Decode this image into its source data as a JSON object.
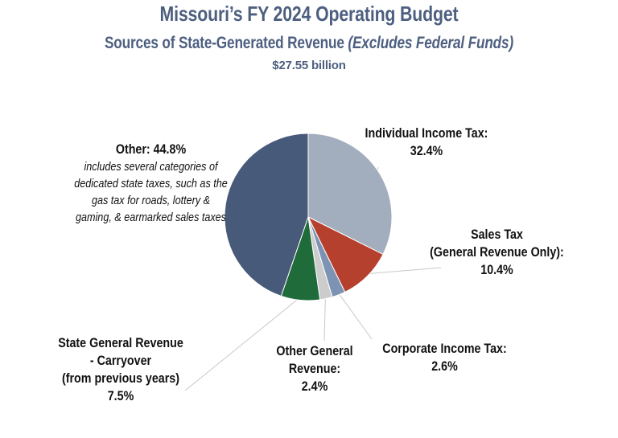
{
  "title": "Missouri’s FY 2024 Operating Budget",
  "subtitle_main": "Sources of State-Generated Revenue ",
  "subtitle_italic": "(Excludes Federal Funds)",
  "total": "$27.55 billion",
  "colors": {
    "title": "#4d5f80",
    "leader_line": "#c8c8c8"
  },
  "chart_data": {
    "type": "pie",
    "title": "Missouri’s FY 2024 Operating Budget",
    "subtitle": "Sources of State-Generated Revenue (Excludes Federal Funds)",
    "total": "$27.55 billion",
    "start_angle": "12 o'clock",
    "direction": "clockwise",
    "slices": [
      {
        "name": "Individual Income Tax",
        "value": 32.4,
        "label_lines": [
          "Individual Income Tax:",
          "32.4%"
        ],
        "color": "#a2adbe"
      },
      {
        "name": "Sales Tax (General Revenue Only)",
        "value": 10.4,
        "label_lines": [
          "Sales Tax",
          "(General Revenue Only):",
          "10.4%"
        ],
        "color": "#b5402e"
      },
      {
        "name": "Corporate Income Tax",
        "value": 2.6,
        "label_lines": [
          "Corporate Income Tax:",
          "2.6%"
        ],
        "color": "#7d93b4"
      },
      {
        "name": "Other General Revenue",
        "value": 2.4,
        "label_lines": [
          "Other General",
          "Revenue:",
          "2.4%"
        ],
        "color": "#cccccc"
      },
      {
        "name": "State General Revenue - Carryover (from previous years)",
        "value": 7.5,
        "label_lines": [
          "State General Revenue",
          "- Carryover",
          "(from previous years)",
          "7.5%"
        ],
        "color": "#1f6b3a"
      },
      {
        "name": "Other",
        "value": 44.8,
        "label_lines": [
          "Other: 44.8%"
        ],
        "note_lines": [
          "includes several categories of",
          "dedicated state taxes, such as the",
          "gas tax for roads, lottery &",
          "gaming, & earmarked sales taxes"
        ],
        "color": "#485a7a"
      }
    ]
  }
}
